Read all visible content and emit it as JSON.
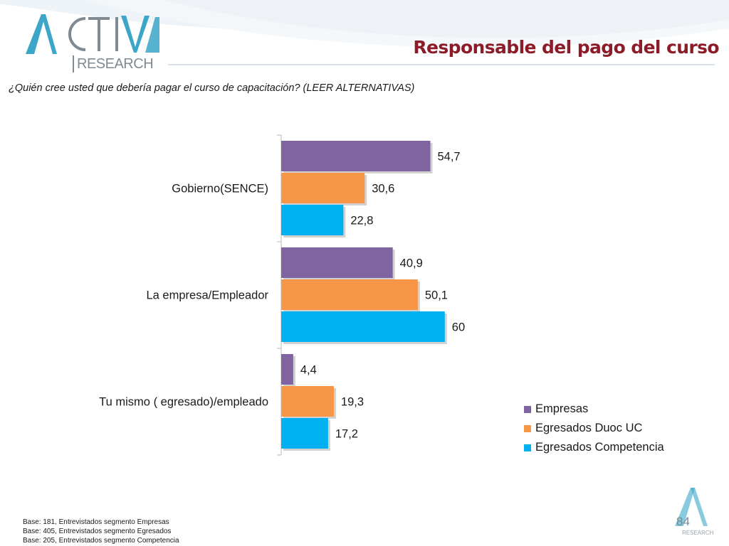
{
  "header": {
    "logo_word": "ACTIVA",
    "logo_sub": "RESEARCH",
    "title": "Responsable del pago del curso"
  },
  "question": "¿Quién cree usted que debería pagar el curso de capacitación? (LEER ALTERNATIVAS)",
  "chart_data": {
    "type": "bar",
    "orientation": "horizontal",
    "categories": [
      "Gobierno(SENCE)",
      "La empresa/Empleador",
      "Tu mismo ( egresado)/empleado"
    ],
    "series": [
      {
        "name": "Empresas",
        "color": "#8064a2",
        "values": [
          54.7,
          40.9,
          4.4
        ],
        "labels": [
          "54,7",
          "40,9",
          "4,4"
        ]
      },
      {
        "name": "Egresados Duoc UC",
        "color": "#f79646",
        "values": [
          30.6,
          50.1,
          19.3
        ],
        "labels": [
          "30,6",
          "50,1",
          "19,3"
        ]
      },
      {
        "name": "Egresados Competencia",
        "color": "#00b0f0",
        "values": [
          22.8,
          60,
          17.2
        ],
        "labels": [
          "22,8",
          "60",
          "17,2"
        ]
      }
    ],
    "xlim": [
      0,
      60
    ],
    "legend": "right",
    "grid": false
  },
  "footnotes": [
    "Base: 181, Entrevistados segmento Empresas",
    "Base: 405, Entrevistados segmento Egresados",
    "Base: 205, Entrevistados segmento Competencia"
  ],
  "page_number": "84",
  "corner_logo_sub": "RESEARCH"
}
